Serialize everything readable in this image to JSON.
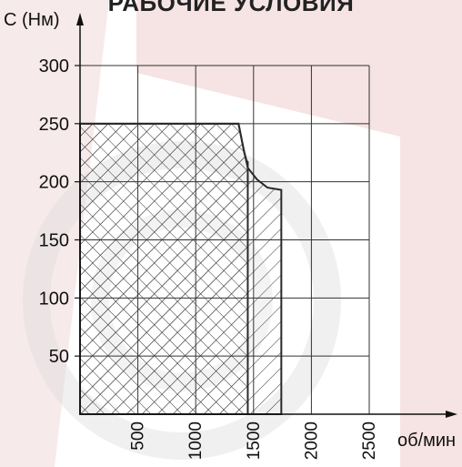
{
  "page": {
    "title": "РАБОЧИЕ УСЛОВИЯ"
  },
  "colors": {
    "watermark": "#e8c4c4",
    "watermark_gray": "#d4d4d4",
    "lines": "#2a2a2a",
    "grid": "#333333"
  },
  "chart_data": {
    "type": "area",
    "title": "РАБОЧИЕ УСЛОВИЯ",
    "xlabel": "об/мин",
    "ylabel": "С (Нм)",
    "xlim": [
      0,
      2500
    ],
    "ylim": [
      0,
      300
    ],
    "x_ticks": [
      500,
      1000,
      1500,
      2000,
      2500
    ],
    "x_tick_labels": [
      "500",
      "1000",
      "1500",
      "2000",
      "2500"
    ],
    "y_ticks": [
      50,
      100,
      150,
      200,
      250,
      300
    ],
    "y_tick_labels": [
      "50",
      "100",
      "150",
      "200",
      "250",
      "300"
    ],
    "grid": true,
    "series": [
      {
        "hatch": "cross",
        "points": [
          [
            0,
            0
          ],
          [
            0,
            250
          ],
          [
            1370,
            250
          ],
          [
            1420,
            225
          ],
          [
            1440,
            218
          ],
          [
            1450,
            217
          ],
          [
            1450,
            0
          ]
        ]
      },
      {
        "hatch": "diagonal",
        "points": [
          [
            0,
            0
          ],
          [
            0,
            250
          ],
          [
            1370,
            250
          ],
          [
            1410,
            230
          ],
          [
            1450,
            212
          ],
          [
            1530,
            202
          ],
          [
            1620,
            195
          ],
          [
            1740,
            193
          ],
          [
            1740,
            0
          ]
        ]
      }
    ]
  }
}
